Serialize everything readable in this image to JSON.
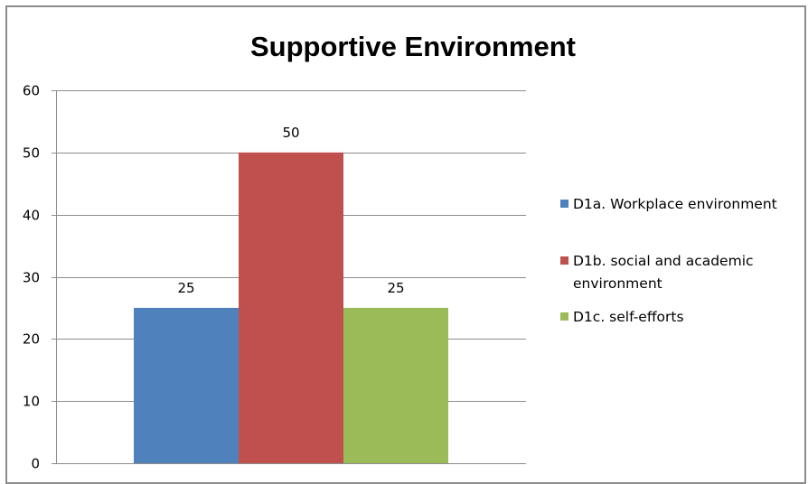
{
  "chart_data": {
    "type": "bar",
    "title": "Supportive Environment",
    "categories": [
      ""
    ],
    "series": [
      {
        "name": "D1a. Workplace environment",
        "values": [
          25
        ],
        "color": "#4F81BD"
      },
      {
        "name": "D1b. social and academic environment",
        "values": [
          50
        ],
        "color": "#C0504D"
      },
      {
        "name": "D1c. self-efforts",
        "values": [
          25
        ],
        "color": "#9BBB59"
      }
    ],
    "data_labels": [
      "25",
      "50",
      "25"
    ],
    "ylim": [
      0,
      60
    ],
    "yticks": [
      0,
      10,
      20,
      30,
      40,
      50,
      60
    ],
    "grid": true,
    "legend": "right",
    "legend_lines": [
      [
        "D1a. Workplace environment"
      ],
      [
        "D1b. social and academic",
        "environment"
      ],
      [
        "D1c. self-efforts"
      ]
    ]
  }
}
